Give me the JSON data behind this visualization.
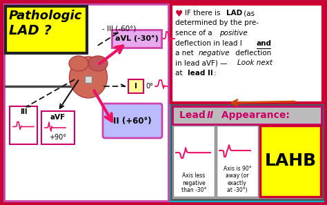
{
  "bg_color": "#00b8d4",
  "title_text1": "Pathologic",
  "title_text2": "LAD ?",
  "title_bg": "#ffff00",
  "title_border": "#222222",
  "avl_label": "aVL (-30°)",
  "avl_bg": "#e8aaee",
  "avl_border": "#cc44aa",
  "lead_I_label": "I",
  "lead_I_bg": "#ffff99",
  "lead_I_border": "#cc0066",
  "lead_II_label": "II (+60°)",
  "lead_II_bg": "#bbbbff",
  "lead_II_border": "#cc44aa",
  "lead_III_label": "III",
  "avf_label": "aVF",
  "avf_sub": "+90°",
  "neg_III_label": "- III (-60°)",
  "lead_I_angle": "0°",
  "right_box_bg": "#ffffff",
  "right_box_border": "#cc0033",
  "lahb_label": "LAHB",
  "lahb_bg": "#ffff00",
  "lahb_border": "#cc0033",
  "outer_border": "#cc0033",
  "left_panel_bg": "#ffffff",
  "gray_panel_bg": "#aaaaaa",
  "lead_title_bg": "#888888",
  "heart_color": "#e06060",
  "arrow_pink": "#ee1166",
  "arrow_black": "#111111"
}
